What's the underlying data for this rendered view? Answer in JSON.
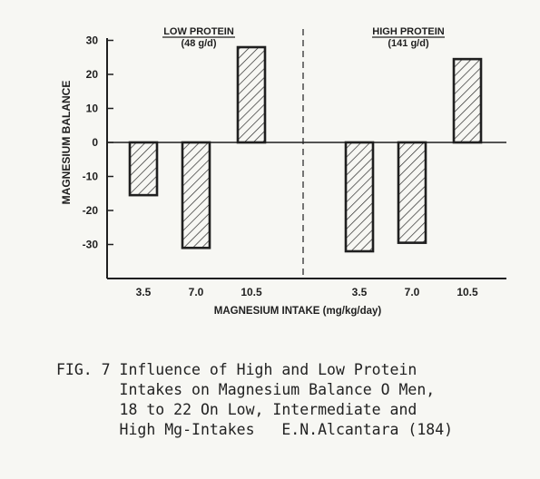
{
  "colors": {
    "ink": "#1f1f1f",
    "paper": "#f7f7f3",
    "hatch": "#2a2a2a"
  },
  "chart_data": {
    "type": "bar",
    "ylabel": "MAGNESIUM BALANCE",
    "xlabel": "MAGNESIUM INTAKE (mg/kg/day)",
    "ylim": [
      -40,
      30
    ],
    "yticks": [
      30,
      20,
      10,
      0,
      -10,
      -20,
      -30
    ],
    "ytick_labels": [
      "30",
      "20",
      "10",
      "0",
      "-10",
      "-20",
      "-30"
    ],
    "grid": false,
    "groups": [
      {
        "title": "LOW PROTEIN",
        "subtitle": "(48 g/d)",
        "categories": [
          "3.5",
          "7.0",
          "10.5"
        ],
        "values": [
          -15.5,
          -31,
          28
        ]
      },
      {
        "title": "HIGH PROTEIN",
        "subtitle": "(141 g/d)",
        "categories": [
          "3.5",
          "7.0",
          "10.5"
        ],
        "values": [
          -32,
          -29.5,
          24.5
        ]
      }
    ]
  },
  "caption": {
    "lines": [
      "FIG. 7 Influence of High and Low Protein",
      "       Intakes on Magnesium Balance O Men,",
      "       18 to 22 On Low, Intermediate and",
      "       High Mg-Intakes   E.N.Alcantara (184)"
    ]
  }
}
